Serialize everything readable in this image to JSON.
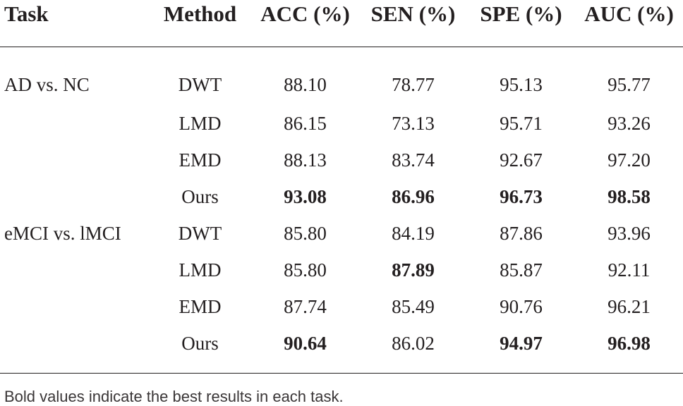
{
  "table": {
    "headers": [
      "Task",
      "Method",
      "ACC (%)",
      "SEN (%)",
      "SPE (%)",
      "AUC (%)"
    ],
    "rows": [
      {
        "task": "AD vs. NC",
        "method": "DWT",
        "acc": "88.10",
        "sen": "78.77",
        "spe": "95.13",
        "auc": "95.77",
        "bold": []
      },
      {
        "task": "",
        "method": "LMD",
        "acc": "86.15",
        "sen": "73.13",
        "spe": "95.71",
        "auc": "93.26",
        "bold": []
      },
      {
        "task": "",
        "method": "EMD",
        "acc": "88.13",
        "sen": "83.74",
        "spe": "92.67",
        "auc": "97.20",
        "bold": []
      },
      {
        "task": "",
        "method": "Ours",
        "acc": "93.08",
        "sen": "86.96",
        "spe": "96.73",
        "auc": "98.58",
        "bold": [
          "acc",
          "sen",
          "spe",
          "auc"
        ]
      },
      {
        "task": "eMCI vs. lMCI",
        "method": "DWT",
        "acc": "85.80",
        "sen": "84.19",
        "spe": "87.86",
        "auc": "93.96",
        "bold": []
      },
      {
        "task": "",
        "method": "LMD",
        "acc": "85.80",
        "sen": "87.89",
        "spe": "85.87",
        "auc": "92.11",
        "bold": [
          "sen"
        ]
      },
      {
        "task": "",
        "method": "EMD",
        "acc": "87.74",
        "sen": "85.49",
        "spe": "90.76",
        "auc": "96.21",
        "bold": []
      },
      {
        "task": "",
        "method": "Ours",
        "acc": "90.64",
        "sen": "86.02",
        "spe": "94.97",
        "auc": "96.98",
        "bold": [
          "acc",
          "spe",
          "auc"
        ]
      }
    ],
    "footnote": "Bold values indicate the best results in each task."
  }
}
